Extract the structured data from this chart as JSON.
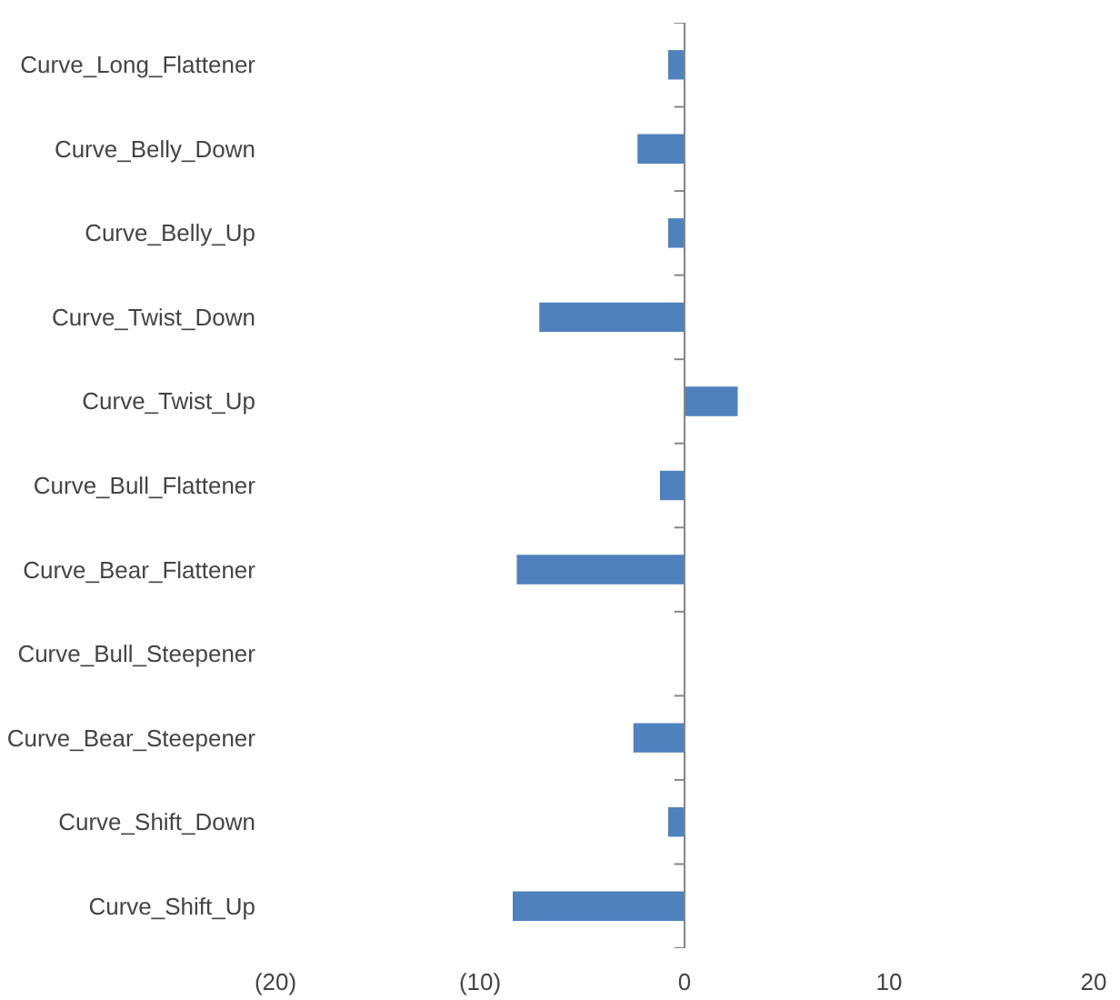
{
  "chart_data": {
    "type": "bar",
    "orientation": "horizontal",
    "categories": [
      "Curve_Long_Flattener",
      "Curve_Belly_Down",
      "Curve_Belly_Up",
      "Curve_Twist_Down",
      "Curve_Twist_Up",
      "Curve_Bull_Flattener",
      "Curve_Bear_Flattener",
      "Curve_Bull_Steepener",
      "Curve_Bear_Steepener",
      "Curve_Shift_Down",
      "Curve_Shift_Up"
    ],
    "values": [
      -0.8,
      -2.3,
      -0.8,
      -7.1,
      2.6,
      -1.2,
      -8.2,
      0,
      -2.5,
      -0.8,
      -8.4
    ],
    "color": "#4f81bd",
    "xlim": [
      -20,
      20
    ],
    "xticks": [
      {
        "value": -20,
        "label": "(20)"
      },
      {
        "value": -10,
        "label": "(10)"
      },
      0,
      10,
      20
    ],
    "ref_lines": [
      {
        "axis": "x",
        "value": 0,
        "color": "#868686"
      }
    ]
  }
}
